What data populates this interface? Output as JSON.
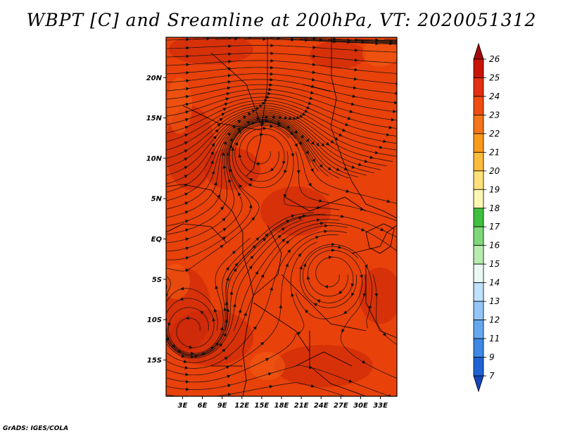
{
  "title": "WBPT [C] and Sreamline at 200hPa, VT: 2020051312",
  "footer": "GrADS: IGES/COLA",
  "map": {
    "lat_labels": [
      "20N",
      "15N",
      "10N",
      "5N",
      "EQ",
      "5S",
      "10S",
      "15S"
    ],
    "lat_values": [
      20,
      15,
      10,
      5,
      0,
      -5,
      -10,
      -15
    ],
    "lon_labels": [
      "3E",
      "6E",
      "9E",
      "12E",
      "15E",
      "18E",
      "21E",
      "24E",
      "27E",
      "30E",
      "33E"
    ],
    "lon_values": [
      3,
      6,
      9,
      12,
      15,
      18,
      21,
      24,
      27,
      30,
      33
    ],
    "lat_range": [
      -19.5,
      25
    ],
    "lon_range": [
      0.5,
      35.5
    ],
    "field_base_color": "#e8410a",
    "field_dark_color": "#c9240a",
    "field_light_color": "#f25a12",
    "streamline_color": "#111111",
    "coast_color": "#000000"
  },
  "colorbar": {
    "labels": [
      "26",
      "25",
      "24",
      "23",
      "22",
      "21",
      "20",
      "19",
      "18",
      "17",
      "16",
      "15",
      "14",
      "13",
      "12",
      "11",
      "9",
      "7"
    ],
    "colors": [
      "#a50a0a",
      "#c81508",
      "#e23010",
      "#f04d12",
      "#f5751a",
      "#f99a1c",
      "#fbbb3c",
      "#fde07a",
      "#fbf7b2",
      "#3fbf3f",
      "#7ed87a",
      "#b8ecb0",
      "#e9f8f2",
      "#bfe1fb",
      "#93c6f7",
      "#66a8ef",
      "#3e88e6",
      "#2063d4",
      "#1546b8"
    ]
  }
}
